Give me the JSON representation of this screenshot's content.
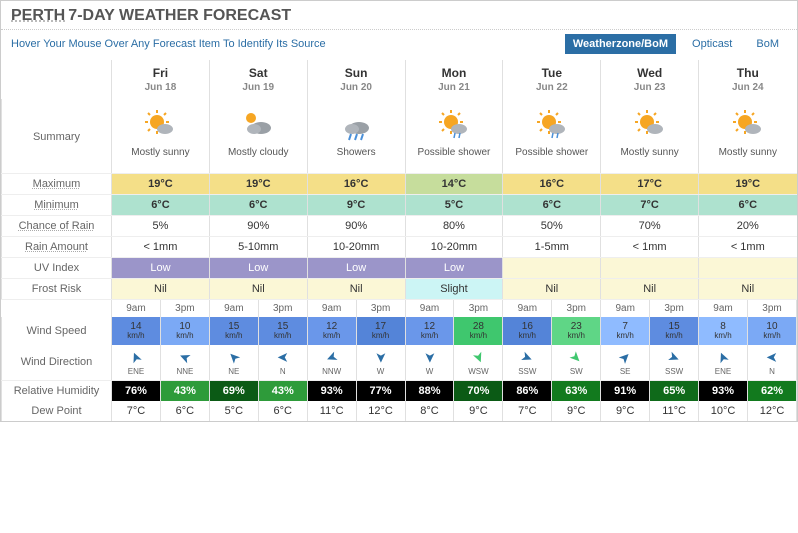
{
  "header": {
    "city": "PERTH",
    "title_suffix": "7-DAY WEATHER FORECAST",
    "hint": "Hover Your Mouse Over Any Forecast Item To Identify Its Source",
    "tabs": [
      {
        "label": "Weatherzone/BoM",
        "active": true
      },
      {
        "label": "Opticast",
        "active": false
      },
      {
        "label": "BoM",
        "active": false
      }
    ]
  },
  "labels": {
    "summary": "Summary",
    "maximum": "Maximum",
    "minimum": "Minimum",
    "chance_rain": "Chance of Rain",
    "rain_amount": "Rain Amount",
    "uv": "UV Index",
    "frost": "Frost Risk",
    "wind_speed": "Wind Speed",
    "wind_dir": "Wind Direction",
    "humidity": "Relative Humidity",
    "dew": "Dew Point"
  },
  "colors": {
    "max_bg": [
      "#f4df88",
      "#f4df88",
      "#f4df88",
      "#c6dd9c",
      "#f4df88",
      "#f4df88",
      "#f4df88"
    ],
    "min_bg": "#aee2cf",
    "uv_bg": "#9b95c9",
    "frost_nil_bg": "#fbf7d6",
    "frost_slight_bg": "#ccf5f5",
    "wind_palette": {
      "7": "#8fbbff",
      "8": "#8fbbff",
      "10": "#7ba9f5",
      "12": "#6a97ea",
      "14": "#5e8ce0",
      "15": "#5e8ce0",
      "16": "#5484d8",
      "17": "#5484d8",
      "23": "#5fd686",
      "28": "#3fc76e"
    },
    "hum_palette": {
      "43": "#2e9b3a",
      "62": "#127a1e",
      "63": "#127a1e",
      "65": "#0f6a1a",
      "69": "#0b5a15",
      "70": "#0b5a15",
      "76": "#000",
      "77": "#000",
      "86": "#000",
      "88": "#000",
      "91": "#000",
      "93": "#000"
    },
    "arrow_default": "#2b6ea5",
    "arrow_green": "#3fc76e"
  },
  "time_heads": [
    "9am",
    "3pm"
  ],
  "days": [
    {
      "name": "Fri",
      "date": "Jun 18",
      "icon": "sunny",
      "summary": "Mostly sunny",
      "max": "19°C",
      "min": "6°C",
      "rain_chance": "5%",
      "rain_amt": "< 1mm",
      "uv": "Low",
      "frost": "Nil",
      "wind": [
        {
          "v": "14",
          "d": "ENE",
          "deg": 67.5
        },
        {
          "v": "10",
          "d": "NNE",
          "deg": 22.5
        }
      ],
      "hum": [
        "76%",
        "43%"
      ],
      "dew": [
        "7°C",
        "6°C"
      ]
    },
    {
      "name": "Sat",
      "date": "Jun 19",
      "icon": "cloudy",
      "summary": "Mostly cloudy",
      "max": "19°C",
      "min": "6°C",
      "rain_chance": "90%",
      "rain_amt": "5-10mm",
      "uv": "Low",
      "frost": "Nil",
      "wind": [
        {
          "v": "15",
          "d": "NE",
          "deg": 45
        },
        {
          "v": "15",
          "d": "N",
          "deg": 0
        }
      ],
      "hum": [
        "69%",
        "43%"
      ],
      "dew": [
        "5°C",
        "6°C"
      ]
    },
    {
      "name": "Sun",
      "date": "Jun 20",
      "icon": "rain",
      "summary": "Showers",
      "max": "16°C",
      "min": "9°C",
      "rain_chance": "90%",
      "rain_amt": "10-20mm",
      "uv": "Low",
      "frost": "Nil",
      "wind": [
        {
          "v": "12",
          "d": "NNW",
          "deg": 337.5
        },
        {
          "v": "17",
          "d": "W",
          "deg": 270
        }
      ],
      "hum": [
        "93%",
        "77%"
      ],
      "dew": [
        "11°C",
        "12°C"
      ]
    },
    {
      "name": "Mon",
      "date": "Jun 21",
      "icon": "shower",
      "summary": "Possible shower",
      "max": "14°C",
      "min": "5°C",
      "rain_chance": "80%",
      "rain_amt": "10-20mm",
      "uv": "Low",
      "frost": "Slight",
      "wind": [
        {
          "v": "12",
          "d": "W",
          "deg": 270
        },
        {
          "v": "28",
          "d": "WSW",
          "deg": 247.5,
          "green": true
        }
      ],
      "hum": [
        "88%",
        "70%"
      ],
      "dew": [
        "8°C",
        "9°C"
      ]
    },
    {
      "name": "Tue",
      "date": "Jun 22",
      "icon": "shower",
      "summary": "Possible shower",
      "max": "16°C",
      "min": "6°C",
      "rain_chance": "50%",
      "rain_amt": "1-5mm",
      "uv": "",
      "frost": "Nil",
      "wind": [
        {
          "v": "16",
          "d": "SSW",
          "deg": 202.5
        },
        {
          "v": "23",
          "d": "SW",
          "deg": 225,
          "green": true
        }
      ],
      "hum": [
        "86%",
        "63%"
      ],
      "dew": [
        "7°C",
        "9°C"
      ]
    },
    {
      "name": "Wed",
      "date": "Jun 23",
      "icon": "sunny",
      "summary": "Mostly sunny",
      "max": "17°C",
      "min": "7°C",
      "rain_chance": "70%",
      "rain_amt": "< 1mm",
      "uv": "",
      "frost": "Nil",
      "wind": [
        {
          "v": "7",
          "d": "SE",
          "deg": 135
        },
        {
          "v": "15",
          "d": "SSW",
          "deg": 202.5
        }
      ],
      "hum": [
        "91%",
        "65%"
      ],
      "dew": [
        "9°C",
        "11°C"
      ]
    },
    {
      "name": "Thu",
      "date": "Jun 24",
      "icon": "sunny",
      "summary": "Mostly sunny",
      "max": "19°C",
      "min": "6°C",
      "rain_chance": "20%",
      "rain_amt": "< 1mm",
      "uv": "",
      "frost": "Nil",
      "wind": [
        {
          "v": "8",
          "d": "ENE",
          "deg": 67.5
        },
        {
          "v": "10",
          "d": "N",
          "deg": 0
        }
      ],
      "hum": [
        "93%",
        "62%"
      ],
      "dew": [
        "10°C",
        "12°C"
      ]
    }
  ]
}
